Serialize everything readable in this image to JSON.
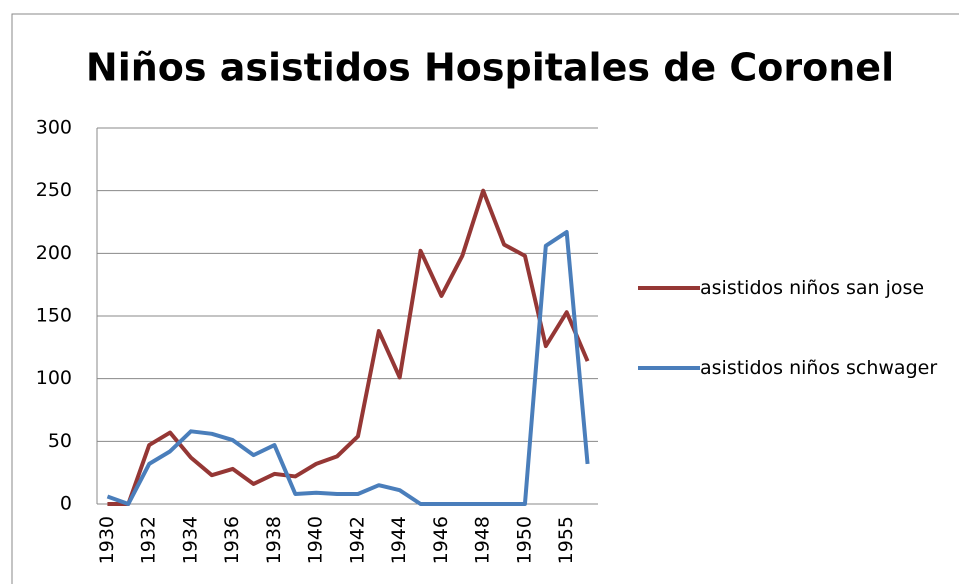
{
  "chart_data": {
    "type": "line",
    "title": "Niños asistidos Hospitales de Coronel",
    "categories": [
      "1930",
      null,
      "1932",
      null,
      "1934",
      null,
      "1936",
      null,
      "1938",
      null,
      "1940",
      null,
      "1942",
      null,
      "1944",
      null,
      "1946",
      null,
      "1948",
      null,
      "1950",
      null,
      "1955",
      null
    ],
    "series": [
      {
        "name": "asistidos niños san jose",
        "color": "#953735",
        "values": [
          0,
          0,
          47,
          57,
          37,
          23,
          28,
          16,
          24,
          22,
          32,
          38,
          54,
          138,
          101,
          202,
          166,
          198,
          250,
          207,
          198,
          126,
          153,
          114
        ]
      },
      {
        "name": "asistidos niños schwager",
        "color": "#4a7ebb",
        "values": [
          6,
          0,
          32,
          42,
          58,
          56,
          51,
          39,
          47,
          8,
          9,
          8,
          8,
          15,
          11,
          0,
          0,
          0,
          0,
          0,
          0,
          206,
          217,
          32
        ]
      }
    ],
    "ylim": [
      0,
      300
    ],
    "yticks": [
      0,
      50,
      100,
      150,
      200,
      250,
      300
    ],
    "grid": true,
    "legend": "right"
  }
}
